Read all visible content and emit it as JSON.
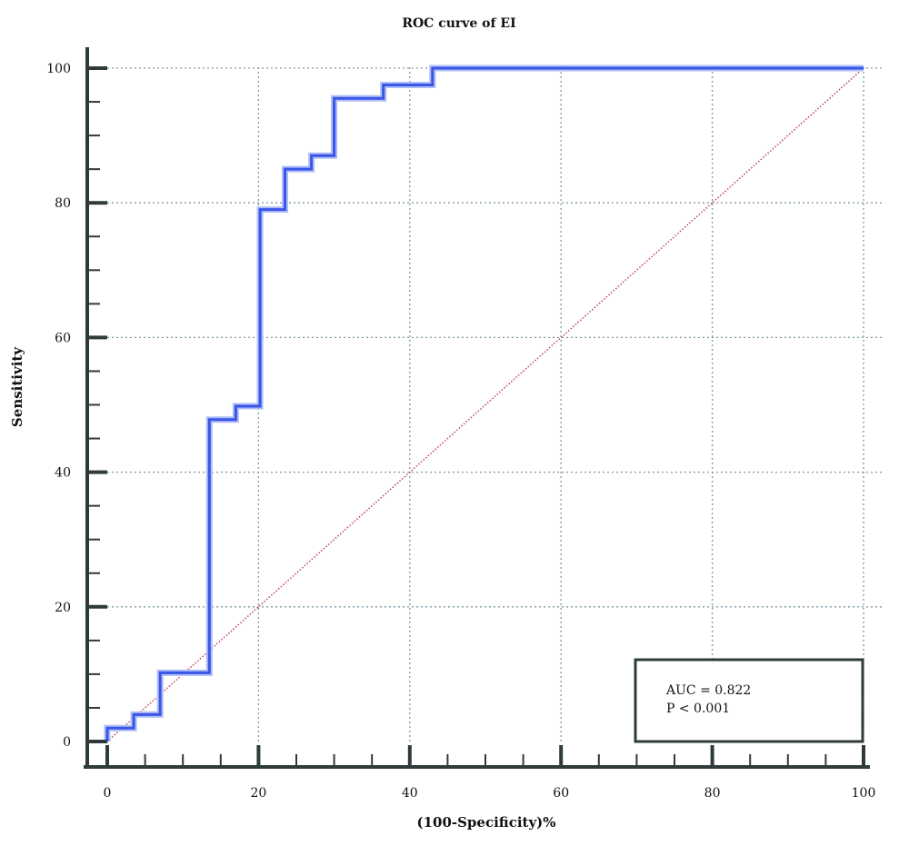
{
  "chart_data": {
    "type": "line",
    "title": "ROC curve of EI",
    "xlabel": "(100-Specificity)%",
    "ylabel": "Sensitivity",
    "xlim": [
      0,
      100
    ],
    "ylim": [
      0,
      100
    ],
    "x_ticks": [
      "0",
      "20",
      "40",
      "60",
      "80",
      "100"
    ],
    "y_ticks": [
      "0",
      "20",
      "40",
      "60",
      "80",
      "100"
    ],
    "grid": true,
    "series": [
      {
        "color": "#3a56e8",
        "step": true,
        "points": [
          [
            0,
            0
          ],
          [
            0,
            2
          ],
          [
            3.5,
            2
          ],
          [
            3.5,
            4
          ],
          [
            7,
            4
          ],
          [
            7,
            10.2
          ],
          [
            13.5,
            10.2
          ],
          [
            13.5,
            47.8
          ],
          [
            17,
            47.8
          ],
          [
            17,
            49.8
          ],
          [
            20.2,
            49.8
          ],
          [
            20.2,
            79
          ],
          [
            23.5,
            79
          ],
          [
            23.5,
            85
          ],
          [
            27,
            85
          ],
          [
            27,
            87
          ],
          [
            30,
            87
          ],
          [
            30,
            95.5
          ],
          [
            36.5,
            95.5
          ],
          [
            36.5,
            97.5
          ],
          [
            43,
            97.5
          ],
          [
            43,
            100
          ],
          [
            100,
            100
          ]
        ]
      },
      {
        "color": "#c0506a",
        "style": "dotted",
        "points": [
          [
            0,
            0
          ],
          [
            100,
            100
          ]
        ]
      }
    ],
    "annotations": [
      "AUC = 0.822",
      "P < 0.001"
    ],
    "annotation_position": "bottom-right"
  }
}
